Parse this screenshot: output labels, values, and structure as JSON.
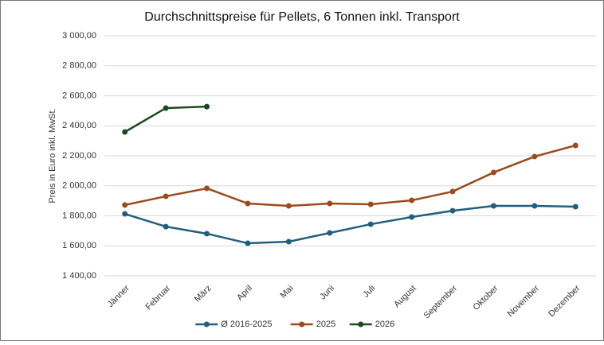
{
  "chart_data": {
    "type": "line",
    "title": "Durchschnittspreise für Pellets, 6 Tonnen inkl. Transport",
    "y_label": "Preis in Euro inkl. MwSt.",
    "categories": [
      "Jänner",
      "Februar",
      "März",
      "April",
      "Mai",
      "Juni",
      "Juli",
      "August",
      "September",
      "Oktober",
      "November",
      "Dezember"
    ],
    "series": [
      {
        "name": "Ø 2016-2025",
        "color": "#215f7e",
        "values": [
          1813,
          1728,
          1681,
          1617,
          1628,
          1686,
          1744,
          1792,
          1834,
          1866,
          1866,
          1861
        ]
      },
      {
        "name": "2025",
        "color": "#9c4a1c",
        "values": [
          1872,
          1930,
          1983,
          1882,
          1866,
          1882,
          1877,
          1903,
          1962,
          2089,
          2195,
          2269
        ]
      },
      {
        "name": "2026",
        "color": "#1b4a1e",
        "values": [
          2359,
          2518,
          2528,
          null,
          null,
          null,
          null,
          null,
          null,
          null,
          null,
          null
        ]
      }
    ],
    "ylim": [
      1400,
      3000
    ],
    "yticks": [
      {
        "value": 1400,
        "label": "1 400,00"
      },
      {
        "value": 1600,
        "label": "1 600,00"
      },
      {
        "value": 1800,
        "label": "1 800,00"
      },
      {
        "value": 2000,
        "label": "2 000,00"
      },
      {
        "value": 2200,
        "label": "2 200,00"
      },
      {
        "value": 2400,
        "label": "2 400,00"
      },
      {
        "value": 2600,
        "label": "2 600,00"
      },
      {
        "value": 2800,
        "label": "2 800,00"
      },
      {
        "value": 3000,
        "label": "3 000,00"
      }
    ],
    "grid": true,
    "legend": "bottom"
  }
}
